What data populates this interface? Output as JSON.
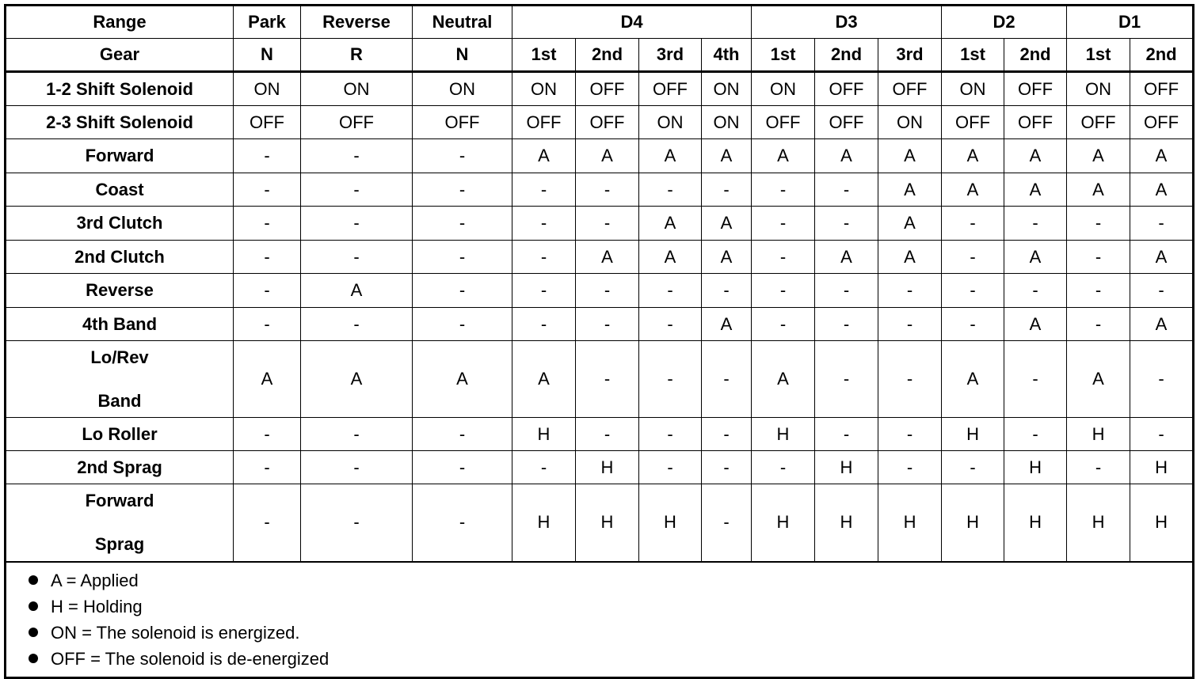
{
  "table": {
    "header": [
      [
        "Range",
        "Park",
        "Reverse",
        "Neutral",
        "D4",
        "D3",
        "D2",
        "D1"
      ],
      [
        "Gear",
        "N",
        "R",
        "N",
        "1st",
        "2nd",
        "3rd",
        "4th",
        "1st",
        "2nd",
        "3rd",
        "1st",
        "2nd",
        "1st",
        "2nd"
      ]
    ],
    "rows": [
      {
        "label": [
          "1-2 Shift Solenoid"
        ],
        "cells": [
          "ON",
          "ON",
          "ON",
          "ON",
          "OFF",
          "OFF",
          "ON",
          "ON",
          "OFF",
          "OFF",
          "ON",
          "OFF",
          "ON",
          "OFF"
        ]
      },
      {
        "label": [
          "2-3 Shift Solenoid"
        ],
        "cells": [
          "OFF",
          "OFF",
          "OFF",
          "OFF",
          "OFF",
          "ON",
          "ON",
          "OFF",
          "OFF",
          "ON",
          "OFF",
          "OFF",
          "OFF",
          "OFF"
        ]
      },
      {
        "label": [
          "Forward"
        ],
        "cells": [
          "-",
          "-",
          "-",
          "A",
          "A",
          "A",
          "A",
          "A",
          "A",
          "A",
          "A",
          "A",
          "A",
          "A"
        ]
      },
      {
        "label": [
          "Coast"
        ],
        "cells": [
          "-",
          "-",
          "-",
          "-",
          "-",
          "-",
          "-",
          "-",
          "-",
          "A",
          "A",
          "A",
          "A",
          "A"
        ]
      },
      {
        "label": [
          "3rd Clutch"
        ],
        "cells": [
          "-",
          "-",
          "-",
          "-",
          "-",
          "A",
          "A",
          "-",
          "-",
          "A",
          "-",
          "-",
          "-",
          "-"
        ]
      },
      {
        "label": [
          "2nd Clutch"
        ],
        "cells": [
          "-",
          "-",
          "-",
          "-",
          "A",
          "A",
          "A",
          "-",
          "A",
          "A",
          "-",
          "A",
          "-",
          "A"
        ]
      },
      {
        "label": [
          "Reverse"
        ],
        "cells": [
          "-",
          "A",
          "-",
          "-",
          "-",
          "-",
          "-",
          "-",
          "-",
          "-",
          "-",
          "-",
          "-",
          "-"
        ]
      },
      {
        "label": [
          "4th Band"
        ],
        "cells": [
          "-",
          "-",
          "-",
          "-",
          "-",
          "-",
          "A",
          "-",
          "-",
          "-",
          "-",
          "A",
          "-",
          "A"
        ]
      },
      {
        "label": [
          "Lo/Rev",
          "Band"
        ],
        "cells": [
          "A",
          "A",
          "A",
          "A",
          "-",
          "-",
          "-",
          "A",
          "-",
          "-",
          "A",
          "-",
          "A",
          "-"
        ]
      },
      {
        "label": [
          "Lo Roller"
        ],
        "cells": [
          "-",
          "-",
          "-",
          "H",
          "-",
          "-",
          "-",
          "H",
          "-",
          "-",
          "H",
          "-",
          "H",
          "-"
        ]
      },
      {
        "label": [
          "2nd Sprag"
        ],
        "cells": [
          "-",
          "-",
          "-",
          "-",
          "H",
          "-",
          "-",
          "-",
          "H",
          "-",
          "-",
          "H",
          "-",
          "H"
        ]
      },
      {
        "label": [
          "Forward",
          "Sprag"
        ],
        "cells": [
          "-",
          "-",
          "-",
          "H",
          "H",
          "H",
          "-",
          "H",
          "H",
          "H",
          "H",
          "H",
          "H",
          "H"
        ]
      }
    ],
    "notes": [
      "A = Applied",
      "H = Holding",
      "ON = The solenoid is energized.",
      "OFF = The solenoid is de-energized"
    ]
  }
}
